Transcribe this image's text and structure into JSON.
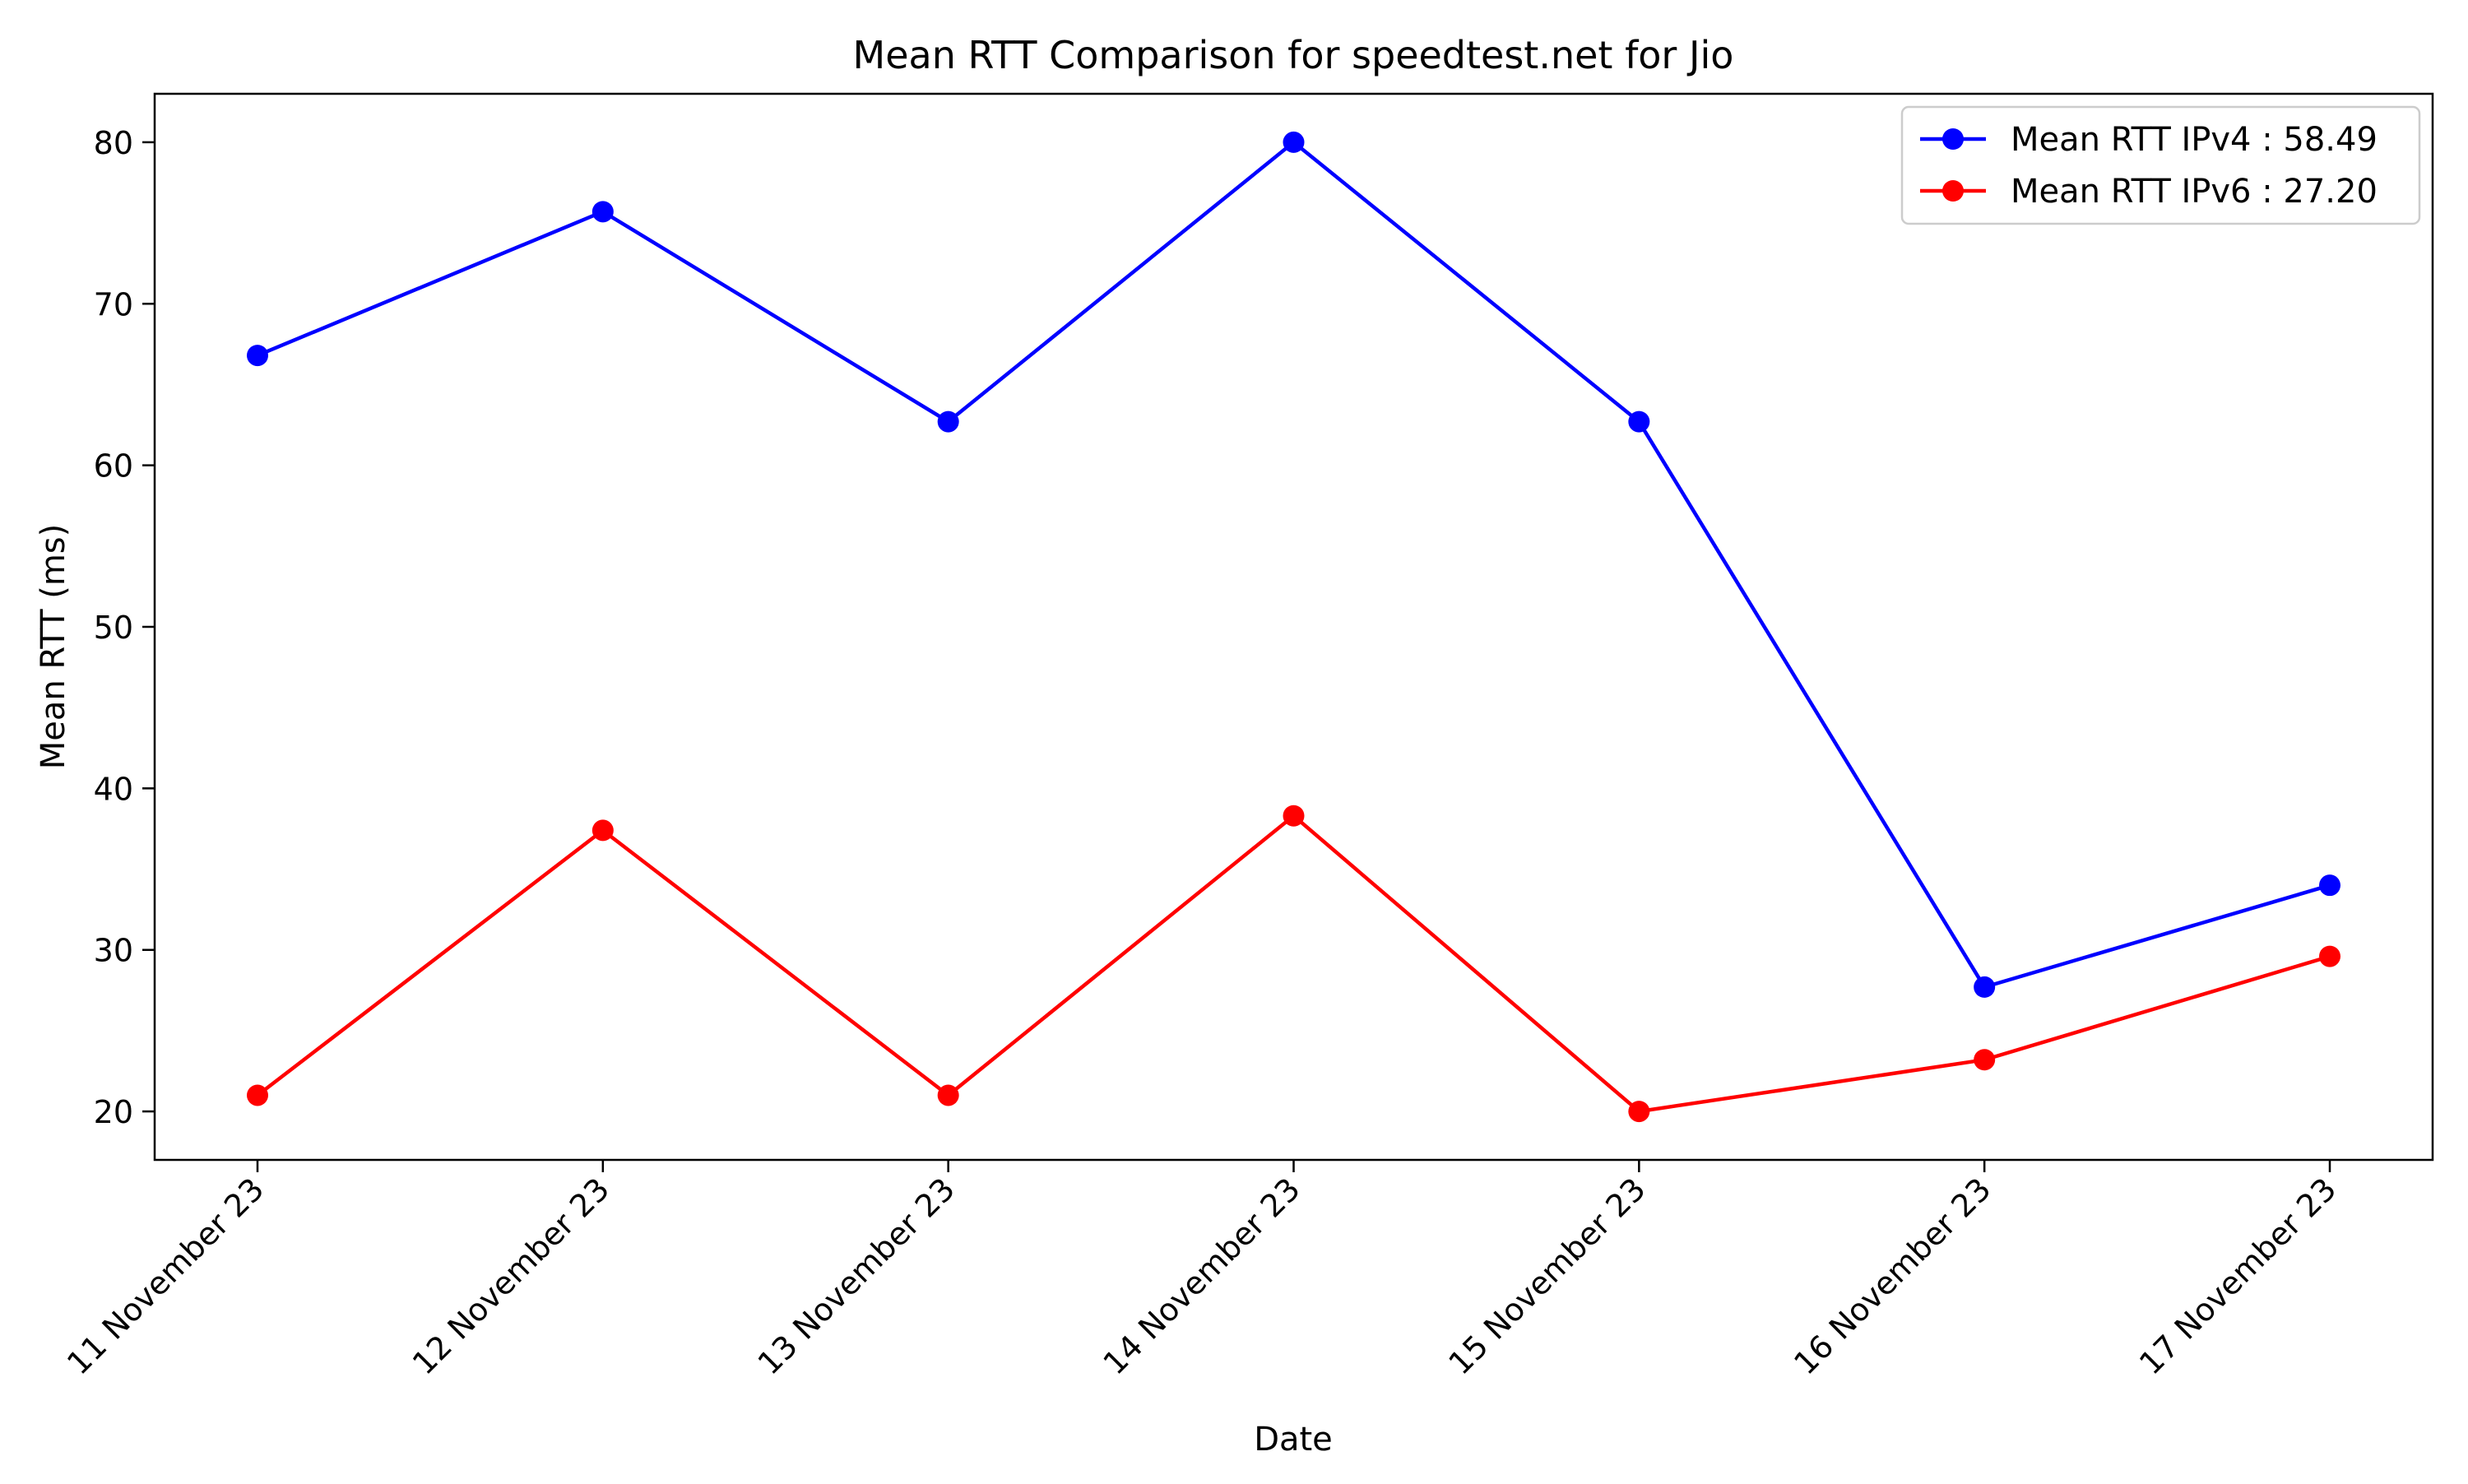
{
  "chart_data": {
    "type": "line",
    "title": "Mean RTT Comparison for speedtest.net for Jio",
    "xlabel": "Date",
    "ylabel": "Mean RTT (ms)",
    "categories": [
      "11 November 23",
      "12 November 23",
      "13 November 23",
      "14 November 23",
      "15 November 23",
      "16 November 23",
      "17 November 23"
    ],
    "ylim": [
      17,
      83
    ],
    "yticks": [
      20,
      30,
      40,
      50,
      60,
      70,
      80
    ],
    "grid": false,
    "legend_position": "top-right",
    "series": [
      {
        "name": "Mean RTT IPv4 : 58.49",
        "color": "#0000ff",
        "marker": "circle",
        "values": [
          66.8,
          75.7,
          62.7,
          80.0,
          62.7,
          27.7,
          34.0
        ]
      },
      {
        "name": "Mean RTT IPv6 : 27.20",
        "color": "#ff0000",
        "marker": "circle",
        "values": [
          21.0,
          37.4,
          21.0,
          38.3,
          20.0,
          23.2,
          29.6
        ]
      }
    ]
  }
}
